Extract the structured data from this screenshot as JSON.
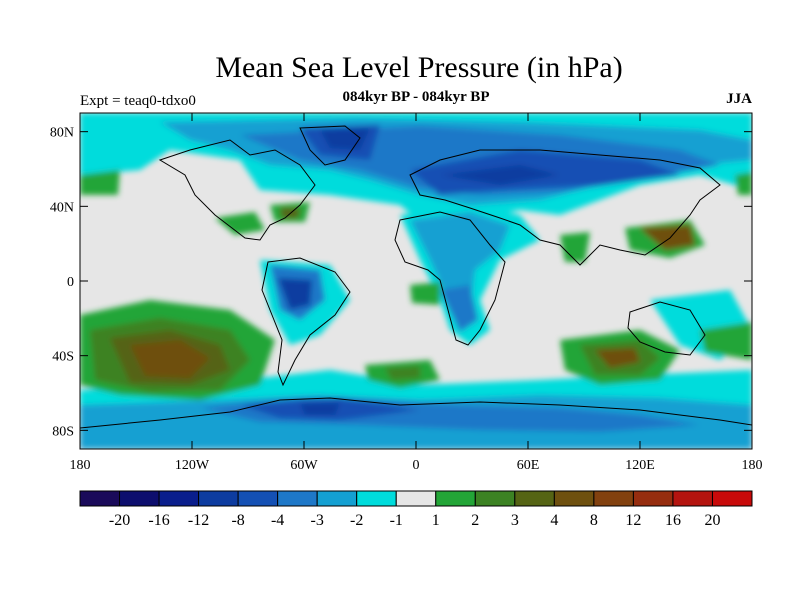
{
  "title": "Mean Sea Level Pressure (in hPa)",
  "subtitle": "084kyr BP - 084kyr BP",
  "expt_label": "Expt = teaq0-tdxo0",
  "season": "JJA",
  "map": {
    "lon_range": [
      -180,
      180
    ],
    "lat_range": [
      -90,
      90
    ],
    "lat_ticks": [
      {
        "lat": 80,
        "label": "80N"
      },
      {
        "lat": 40,
        "label": "40N"
      },
      {
        "lat": 0,
        "label": "0"
      },
      {
        "lat": -40,
        "label": "40S"
      },
      {
        "lat": -80,
        "label": "80S"
      }
    ],
    "lon_ticks": [
      {
        "lon": -180,
        "label": "180"
      },
      {
        "lon": -120,
        "label": "120W"
      },
      {
        "lon": -60,
        "label": "60W"
      },
      {
        "lon": 0,
        "label": "0"
      },
      {
        "lon": 60,
        "label": "60E"
      },
      {
        "lon": 120,
        "label": "120E"
      },
      {
        "lon": 180,
        "label": "180"
      }
    ]
  },
  "colorbar": {
    "colors": [
      "#1a0a5a",
      "#0d0e6e",
      "#0a1e8c",
      "#0d3ca0",
      "#1450b4",
      "#1e78c8",
      "#14a0d2",
      "#00dcdc",
      "#e6e6e6",
      "#23a537",
      "#3c8223",
      "#556414",
      "#6e500f",
      "#82410f",
      "#962d0f",
      "#b4140f",
      "#c80a0a"
    ],
    "labels": [
      "-20",
      "-16",
      "-12",
      "-8",
      "-4",
      "-3",
      "-2",
      "-1",
      "1",
      "2",
      "3",
      "4",
      "8",
      "12",
      "16",
      "20"
    ]
  }
}
